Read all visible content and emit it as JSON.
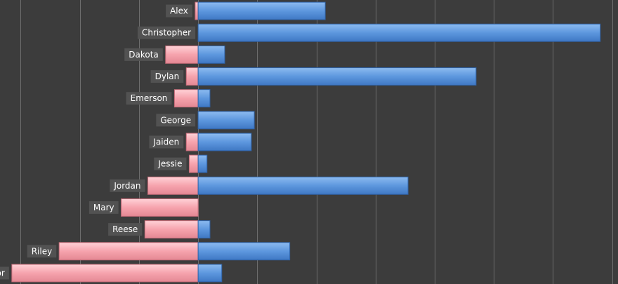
{
  "chart_data": {
    "type": "bar",
    "orientation": "horizontal",
    "stacked_diverging": true,
    "categories": [
      "Alex",
      "Christopher",
      "Dakota",
      "Dylan",
      "Emerson",
      "George",
      "Jaiden",
      "Jessie",
      "Jordan",
      "Mary",
      "Reese",
      "Riley",
      "Taylor"
    ],
    "series": [
      {
        "values": [
          -1,
          0,
          -11,
          -4,
          -8,
          0,
          -4,
          -3,
          -17,
          -26,
          -18,
          -47,
          -63
        ]
      },
      {
        "values": [
          43,
          136,
          9,
          94,
          4,
          19,
          18,
          3,
          71,
          0,
          4,
          31,
          8
        ]
      }
    ],
    "colors": {
      "negative": "#f6a3ad",
      "positive": "#5d97de",
      "background": "#3c3c3c",
      "grid": "#6e6e6e",
      "label_box": "#525252"
    },
    "xlim": [
      -67,
      142
    ],
    "grid": true,
    "legend": "none"
  }
}
